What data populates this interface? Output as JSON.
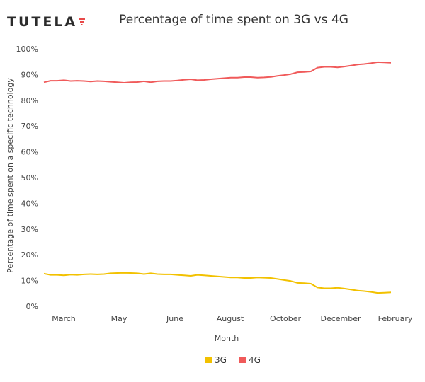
{
  "brand": {
    "logo_text": "TUTELA"
  },
  "chart_data": {
    "type": "line",
    "title": "Percentage of time spent on 3G vs 4G",
    "xlabel": "Month",
    "ylabel": "Percentage of time spent on a specific technology",
    "x_ticks": [
      "March",
      "May",
      "June",
      "August",
      "October",
      "December",
      "February"
    ],
    "y_ticks": [
      "0%",
      "10%",
      "20%",
      "30%",
      "40%",
      "50%",
      "60%",
      "70%",
      "80%",
      "90%",
      "100%"
    ],
    "ylim": [
      0,
      100
    ],
    "grid": false,
    "legend_position": "bottom-center",
    "series": [
      {
        "name": "3G",
        "color": "#f2c100",
        "values": [
          12.7,
          12.2,
          12.2,
          12.0,
          12.3,
          12.2,
          12.4,
          12.5,
          12.4,
          12.5,
          12.8,
          12.9,
          13.0,
          12.9,
          12.8,
          12.5,
          12.8,
          12.5,
          12.4,
          12.4,
          12.2,
          12.0,
          11.8,
          12.2,
          12.0,
          11.8,
          11.6,
          11.4,
          11.2,
          11.2,
          11.0,
          11.0,
          11.2,
          11.1,
          11.0,
          10.6,
          10.2,
          9.8,
          9.1,
          9.0,
          8.8,
          7.3,
          7.0,
          7.0,
          7.2,
          6.9,
          6.5,
          6.1,
          5.9,
          5.6,
          5.2,
          5.3,
          5.4
        ]
      },
      {
        "name": "4G",
        "color": "#f05a5a",
        "values": [
          87.0,
          87.6,
          87.6,
          87.8,
          87.5,
          87.6,
          87.5,
          87.3,
          87.5,
          87.4,
          87.2,
          87.0,
          86.8,
          87.0,
          87.1,
          87.4,
          87.0,
          87.4,
          87.5,
          87.5,
          87.7,
          88.0,
          88.2,
          87.8,
          87.9,
          88.2,
          88.4,
          88.6,
          88.8,
          88.8,
          89.0,
          89.0,
          88.8,
          88.9,
          89.1,
          89.5,
          89.8,
          90.2,
          90.9,
          91.0,
          91.2,
          92.7,
          93.0,
          93.0,
          92.8,
          93.1,
          93.5,
          93.9,
          94.1,
          94.4,
          94.8,
          94.7,
          94.6
        ]
      }
    ]
  }
}
